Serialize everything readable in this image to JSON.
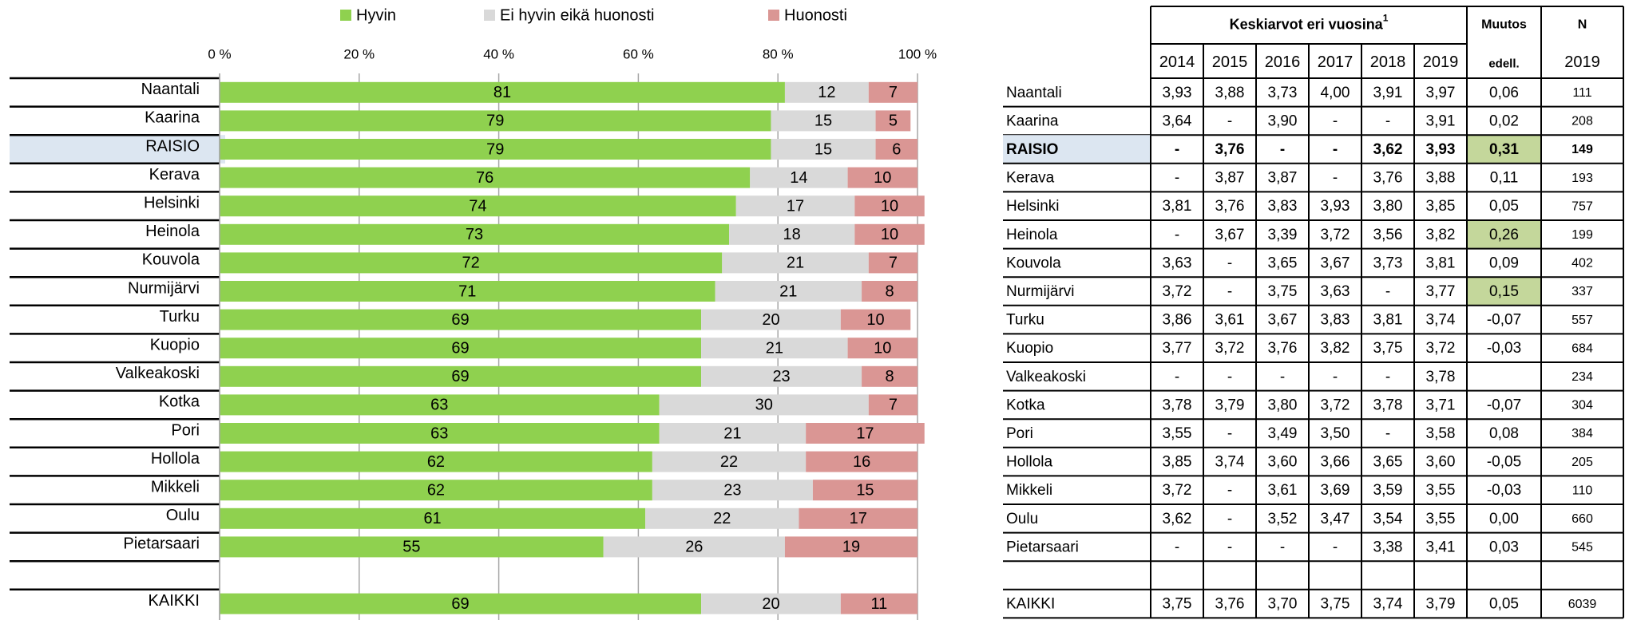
{
  "chart_data": {
    "type": "stacked-barh",
    "categories": [
      "Naantali",
      "Kaarina",
      "RAISIO",
      "Kerava",
      "Helsinki",
      "Heinola",
      "Kouvola",
      "Nurmijärvi",
      "Turku",
      "Kuopio",
      "Valkeakoski",
      "Kotka",
      "Pori",
      "Hollola",
      "Mikkeli",
      "Oulu",
      "Pietarsaari",
      null,
      "KAIKKI"
    ],
    "series": [
      {
        "name": "Hyvin",
        "color": "#8fd14f",
        "values": [
          81,
          79,
          79,
          76,
          74,
          73,
          72,
          71,
          69,
          69,
          69,
          63,
          63,
          62,
          62,
          61,
          55,
          null,
          69
        ]
      },
      {
        "name": "Ei hyvin eikä huonosti",
        "color": "#d9d9d9",
        "values": [
          12,
          15,
          15,
          14,
          17,
          18,
          21,
          21,
          20,
          21,
          23,
          30,
          21,
          22,
          23,
          22,
          26,
          null,
          20
        ]
      },
      {
        "name": "Huonosti",
        "color": "#da9694",
        "values": [
          7,
          5,
          6,
          10,
          10,
          10,
          7,
          8,
          10,
          10,
          8,
          7,
          17,
          16,
          15,
          17,
          19,
          null,
          11
        ]
      }
    ],
    "xlim": [
      0,
      100
    ],
    "xticks": [
      {
        "value": 0,
        "label": "0 %"
      },
      {
        "value": 20,
        "label": "20 %"
      },
      {
        "value": 40,
        "label": "40 %"
      },
      {
        "value": 60,
        "label": "60 %"
      },
      {
        "value": 80,
        "label": "80 %"
      },
      {
        "value": 100,
        "label": "100 %"
      }
    ],
    "grid": true,
    "highlight_category": 2
  },
  "table": {
    "header": {
      "title": "Keskiarvot eri vuosina",
      "note": "1",
      "years": [
        "2014",
        "2015",
        "2016",
        "2017",
        "2018",
        "2019"
      ],
      "change": "Muutos",
      "change_sub": "edell.",
      "n": "N",
      "n_sub": "2019"
    },
    "rows": [
      {
        "name": "Naantali",
        "cells": [
          "3,93",
          "3,88",
          "3,73",
          "4,00",
          "3,91",
          "3,97",
          "0,06",
          "111"
        ]
      },
      {
        "name": "Kaarina",
        "cells": [
          "3,64",
          "-",
          "3,90",
          "-",
          "-",
          "3,91",
          "0,02",
          "208"
        ]
      },
      {
        "name": "RAISIO",
        "bold": true,
        "cells": [
          "-",
          "3,76",
          "-",
          "-",
          "3,62",
          "3,93",
          "0,31",
          "149"
        ],
        "green": [
          6
        ]
      },
      {
        "name": "Kerava",
        "cells": [
          "-",
          "3,87",
          "3,87",
          "-",
          "3,76",
          "3,88",
          "0,11",
          "193"
        ]
      },
      {
        "name": "Helsinki",
        "cells": [
          "3,81",
          "3,76",
          "3,83",
          "3,93",
          "3,80",
          "3,85",
          "0,05",
          "757"
        ]
      },
      {
        "name": "Heinola",
        "cells": [
          "-",
          "3,67",
          "3,39",
          "3,72",
          "3,56",
          "3,82",
          "0,26",
          "199"
        ],
        "green": [
          6
        ]
      },
      {
        "name": "Kouvola",
        "cells": [
          "3,63",
          "-",
          "3,65",
          "3,67",
          "3,73",
          "3,81",
          "0,09",
          "402"
        ]
      },
      {
        "name": "Nurmijärvi",
        "cells": [
          "3,72",
          "-",
          "3,75",
          "3,63",
          "-",
          "3,77",
          "0,15",
          "337"
        ],
        "green": [
          6
        ]
      },
      {
        "name": "Turku",
        "cells": [
          "3,86",
          "3,61",
          "3,67",
          "3,83",
          "3,81",
          "3,74",
          "-0,07",
          "557"
        ]
      },
      {
        "name": "Kuopio",
        "cells": [
          "3,77",
          "3,72",
          "3,76",
          "3,82",
          "3,75",
          "3,72",
          "-0,03",
          "684"
        ]
      },
      {
        "name": "Valkeakoski",
        "cells": [
          "-",
          "-",
          "-",
          "-",
          "-",
          "3,78",
          null,
          "234"
        ]
      },
      {
        "name": "Kotka",
        "cells": [
          "3,78",
          "3,79",
          "3,80",
          "3,72",
          "3,78",
          "3,71",
          "-0,07",
          "304"
        ]
      },
      {
        "name": "Pori",
        "cells": [
          "3,55",
          "-",
          "3,49",
          "3,50",
          "-",
          "3,58",
          "0,08",
          "384"
        ]
      },
      {
        "name": "Hollola",
        "cells": [
          "3,85",
          "3,74",
          "3,60",
          "3,66",
          "3,65",
          "3,60",
          "-0,05",
          "205"
        ]
      },
      {
        "name": "Mikkeli",
        "cells": [
          "3,72",
          "-",
          "3,61",
          "3,69",
          "3,59",
          "3,55",
          "-0,03",
          "110"
        ]
      },
      {
        "name": "Oulu",
        "cells": [
          "3,62",
          "-",
          "3,52",
          "3,47",
          "3,54",
          "3,55",
          "0,00",
          "660"
        ]
      },
      {
        "name": "Pietarsaari",
        "cells": [
          "-",
          "-",
          "-",
          "-",
          "3,38",
          "3,41",
          "0,03",
          "545"
        ]
      },
      {
        "name": null,
        "cells": [
          null,
          null,
          null,
          null,
          null,
          null,
          null,
          null
        ]
      },
      {
        "name": "KAIKKI",
        "cells": [
          "3,75",
          "3,76",
          "3,70",
          "3,75",
          "3,74",
          "3,79",
          "0,05",
          "6039"
        ]
      }
    ]
  }
}
